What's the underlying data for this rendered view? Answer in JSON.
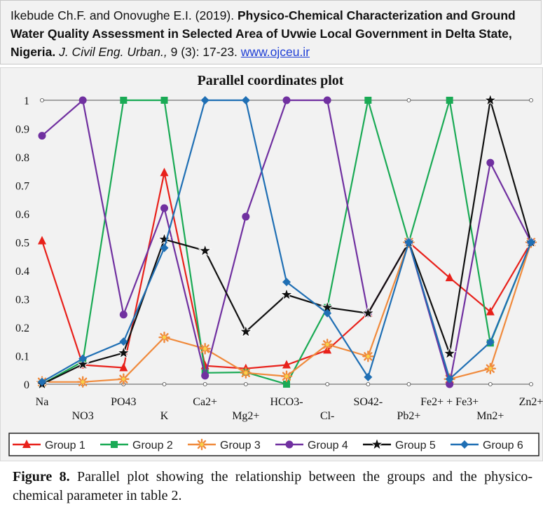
{
  "header": {
    "authors": "Ikebude Ch.F. and Onovughe E.I. (2019).",
    "title": "Physico-Chemical Characterization and Ground Water Quality Assessment in Selected Area of Uvwie Local Government in Delta State, Nigeria",
    "journal": "J. Civil Eng. Urban.,",
    "volume": "9 (3): 17-23.",
    "url": "www.ojceu.ir"
  },
  "caption": {
    "label": "Figure 8.",
    "text": "Parallel plot showing the relationship between the groups and the physico-chemical parameter in table 2."
  },
  "chart_data": {
    "type": "line",
    "title": "Parallel coordinates plot",
    "categories": [
      "Na",
      "NO3",
      "PO43",
      "K",
      "Ca2+",
      "Mg2+",
      "HCO3-",
      "Cl-",
      "SO42-",
      "Pb2+",
      "Fe2+ + Fe3+",
      "Mn2+",
      "Zn2+"
    ],
    "ylim": [
      0,
      1
    ],
    "yticks": [
      "0",
      "0.1",
      "0.2",
      "0.3",
      "0.4",
      "0.5",
      "0.6",
      "0.7",
      "0.8",
      "0.9",
      "1"
    ],
    "grid": false,
    "legend_position": "bottom",
    "series": [
      {
        "name": "Group 1",
        "color": "#e8211b",
        "marker": "triangle",
        "values": [
          0.505,
          0.068,
          0.058,
          0.745,
          0.065,
          0.055,
          0.068,
          0.12,
          0.25,
          0.5,
          0.375,
          0.255,
          0.5
        ]
      },
      {
        "name": "Group 2",
        "color": "#1aaa55",
        "marker": "square",
        "values": [
          0.0,
          0.08,
          1.0,
          1.0,
          0.04,
          0.042,
          0.0,
          0.27,
          1.0,
          0.5,
          1.0,
          0.145,
          0.5
        ]
      },
      {
        "name": "Group 3",
        "color": "#f08a3c",
        "marker": "asterisk",
        "values": [
          0.008,
          0.008,
          0.018,
          0.165,
          0.125,
          0.04,
          0.028,
          0.14,
          0.098,
          0.5,
          0.018,
          0.055,
          0.5
        ]
      },
      {
        "name": "Group 4",
        "color": "#7030a0",
        "marker": "circle",
        "values": [
          0.875,
          1.0,
          0.245,
          0.62,
          0.03,
          0.59,
          1.0,
          1.0,
          0.25,
          0.5,
          0.0,
          0.78,
          0.5
        ]
      },
      {
        "name": "Group 5",
        "color": "#111111",
        "marker": "star",
        "values": [
          0.0,
          0.07,
          0.11,
          0.51,
          0.47,
          0.185,
          0.315,
          0.27,
          0.25,
          0.5,
          0.108,
          1.0,
          0.5
        ]
      },
      {
        "name": "Group 6",
        "color": "#1f6fb4",
        "marker": "diamond",
        "values": [
          0.008,
          0.09,
          0.15,
          0.48,
          1.0,
          1.0,
          0.36,
          0.25,
          0.025,
          0.5,
          0.018,
          0.148,
          0.5
        ]
      }
    ]
  }
}
